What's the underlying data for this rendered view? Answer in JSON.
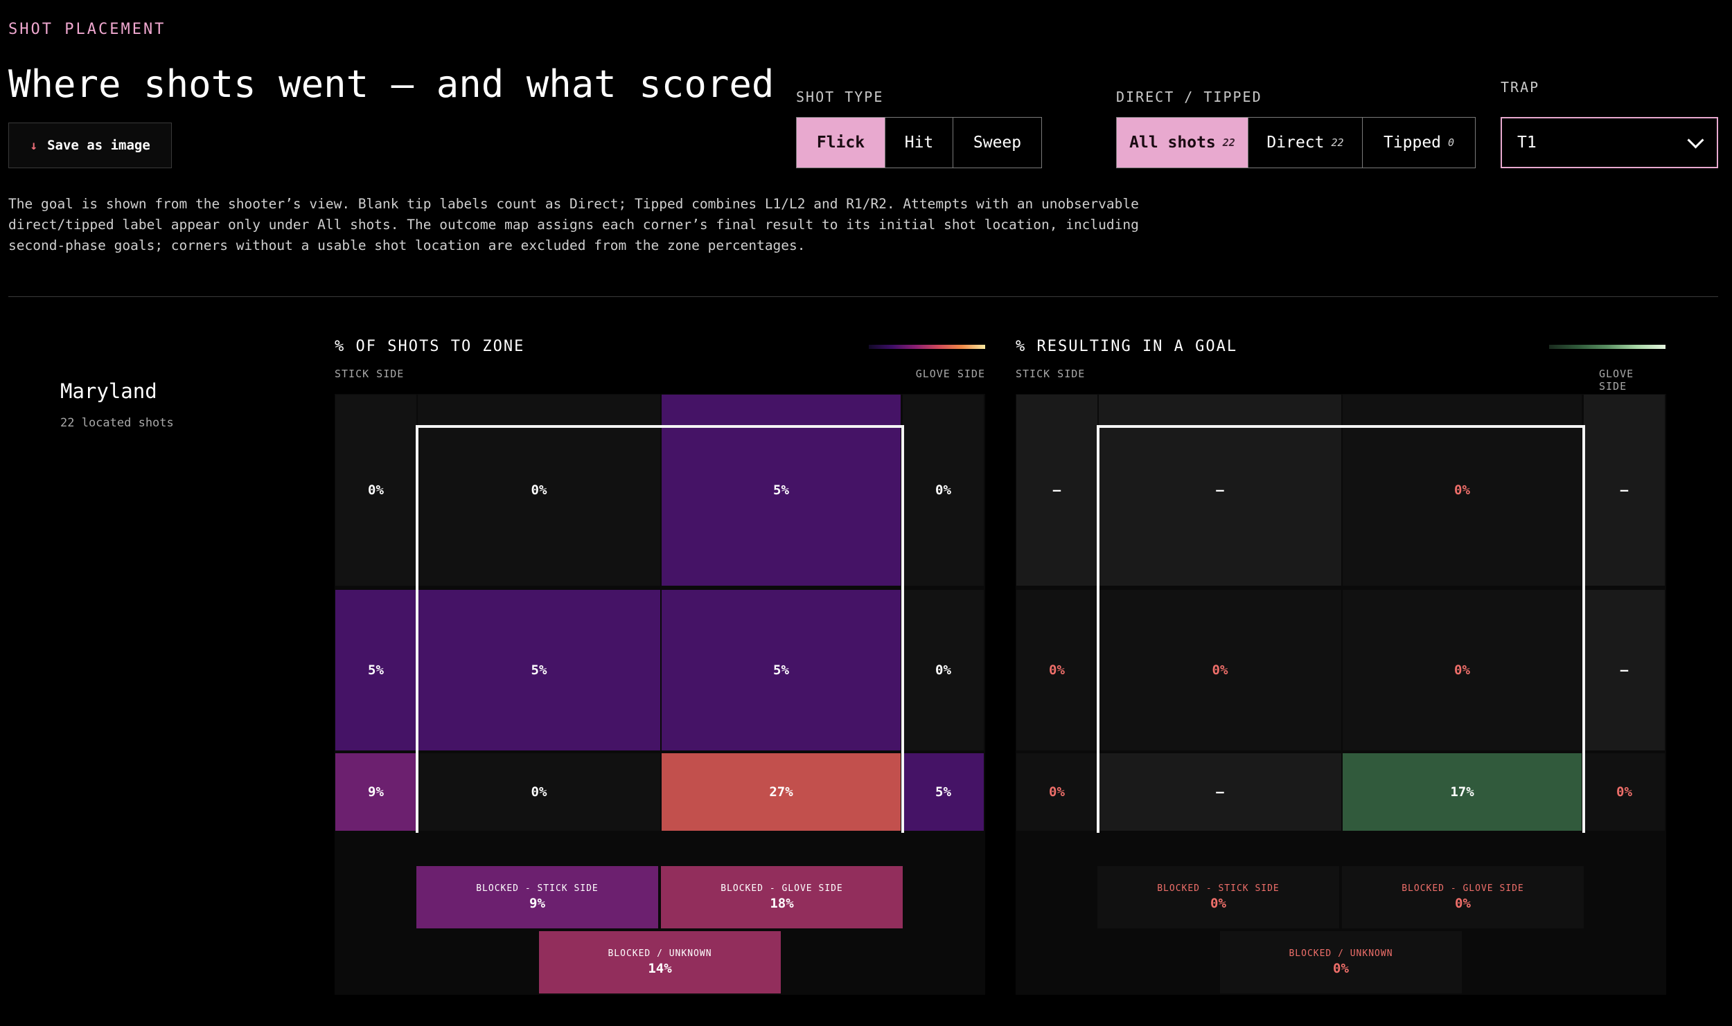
{
  "header": {
    "eyebrow": "SHOT PLACEMENT",
    "title": "Where shots went — and what scored",
    "save_label": "Save as image"
  },
  "controls": {
    "shot_type": {
      "label": "SHOT TYPE",
      "options": [
        "Flick",
        "Hit",
        "Sweep"
      ],
      "selected": "Flick"
    },
    "direct_tipped": {
      "label": "DIRECT / TIPPED",
      "options": [
        {
          "label": "All shots",
          "count": "22"
        },
        {
          "label": "Direct",
          "count": "22"
        },
        {
          "label": "Tipped",
          "count": "0"
        }
      ],
      "selected": "All shots"
    },
    "trap": {
      "label": "TRAP",
      "value": "T1"
    }
  },
  "description": "The goal is shown from the shooter’s view. Blank tip labels count as Direct; Tipped combines L1/L2 and R1/R2. Attempts with an unobservable direct/tipped label appear only under All shots. The outcome map assigns each corner’s final result to its initial shot location, including second-phase goals; corners without a usable shot location are excluded from the zone percentages.",
  "team": {
    "name": "Maryland",
    "sub": "22 located shots"
  },
  "colors": {
    "accent_pink": "#e8a9cf",
    "goal_red": "#ef6f6a"
  },
  "shots_panel": {
    "title": "% OF SHOTS TO ZONE",
    "stick_side": "STICK SIDE",
    "glove_side": "GLOVE SIDE",
    "rows": [
      {
        "out_left": "0%",
        "in_left": "0%",
        "in_right": "5%",
        "out_right": "0%"
      },
      {
        "out_left": "5%",
        "in_left": "5%",
        "in_right": "5%",
        "out_right": "0%"
      },
      {
        "out_left": "9%",
        "in_left": "0%",
        "in_right": "27%",
        "out_right": "5%"
      }
    ],
    "blocked": [
      {
        "label": "BLOCKED - STICK SIDE",
        "value": "9%"
      },
      {
        "label": "BLOCKED - GLOVE SIDE",
        "value": "18%"
      },
      {
        "label": "BLOCKED / UNKNOWN",
        "value": "14%"
      }
    ]
  },
  "goals_panel": {
    "title": "% RESULTING IN A GOAL",
    "stick_side": "STICK SIDE",
    "glove_side": "GLOVE SIDE",
    "rows": [
      {
        "out_left": "—",
        "in_left": "—",
        "in_right": "0%",
        "out_right": "—"
      },
      {
        "out_left": "0%",
        "in_left": "0%",
        "in_right": "0%",
        "out_right": "—"
      },
      {
        "out_left": "0%",
        "in_left": "—",
        "in_right": "17%",
        "out_right": "0%"
      }
    ],
    "blocked": [
      {
        "label": "BLOCKED - STICK SIDE",
        "value": "0%"
      },
      {
        "label": "BLOCKED - GLOVE SIDE",
        "value": "0%"
      },
      {
        "label": "BLOCKED / UNKNOWN",
        "value": "0%"
      }
    ]
  }
}
